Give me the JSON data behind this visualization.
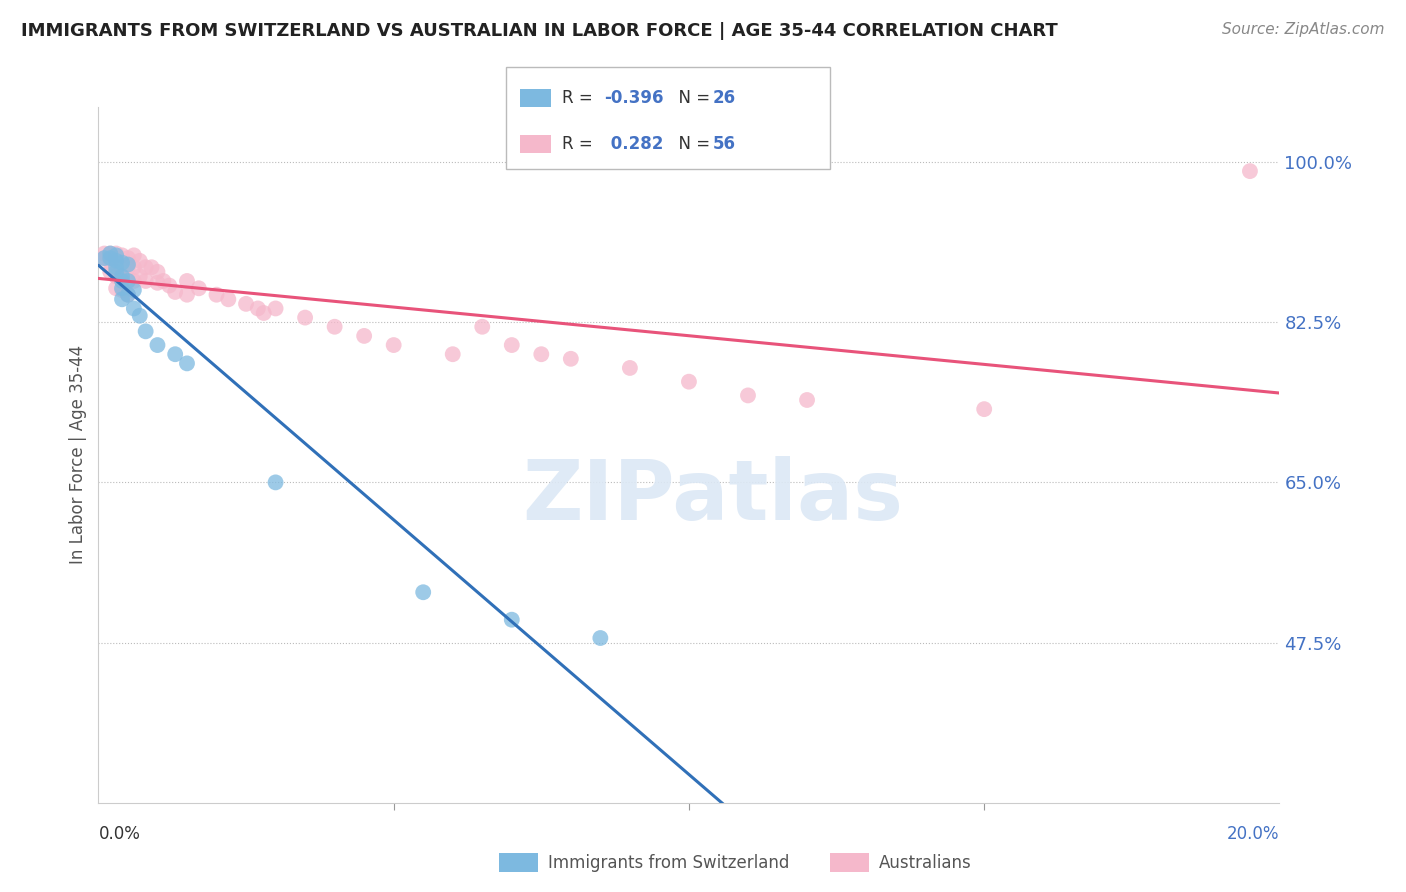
{
  "title": "IMMIGRANTS FROM SWITZERLAND VS AUSTRALIAN IN LABOR FORCE | AGE 35-44 CORRELATION CHART",
  "source": "Source: ZipAtlas.com",
  "ylabel": "In Labor Force | Age 35-44",
  "legend_label1": "Immigrants from Switzerland",
  "legend_label2": "Australians",
  "ytick_vals": [
    0.475,
    0.65,
    0.825,
    1.0
  ],
  "ytick_labels": [
    "47.5%",
    "65.0%",
    "82.5%",
    "100.0%"
  ],
  "xlim": [
    0.0,
    0.2
  ],
  "ylim": [
    0.3,
    1.06
  ],
  "blue_color": "#7db9e0",
  "pink_color": "#f5b8cb",
  "blue_line_color": "#3070b8",
  "pink_line_color": "#e8537a",
  "blue_dash_color": "#b0c8e8",
  "watermark_text": "ZIPatlas",
  "background_color": "#ffffff",
  "grid_color": "#bbbbbb",
  "blue_scatter_x": [
    0.001,
    0.002,
    0.002,
    0.003,
    0.003,
    0.003,
    0.003,
    0.004,
    0.004,
    0.004,
    0.004,
    0.004,
    0.005,
    0.005,
    0.005,
    0.006,
    0.006,
    0.007,
    0.008,
    0.01,
    0.013,
    0.015,
    0.03,
    0.055,
    0.07,
    0.085
  ],
  "blue_scatter_y": [
    0.895,
    0.9,
    0.895,
    0.898,
    0.892,
    0.885,
    0.88,
    0.89,
    0.875,
    0.87,
    0.862,
    0.85,
    0.888,
    0.87,
    0.855,
    0.86,
    0.84,
    0.832,
    0.815,
    0.8,
    0.79,
    0.78,
    0.65,
    0.53,
    0.5,
    0.48
  ],
  "pink_scatter_x": [
    0.001,
    0.001,
    0.002,
    0.002,
    0.002,
    0.002,
    0.003,
    0.003,
    0.003,
    0.003,
    0.003,
    0.004,
    0.004,
    0.004,
    0.004,
    0.005,
    0.005,
    0.005,
    0.005,
    0.006,
    0.006,
    0.006,
    0.007,
    0.007,
    0.008,
    0.008,
    0.009,
    0.01,
    0.01,
    0.011,
    0.012,
    0.013,
    0.015,
    0.015,
    0.017,
    0.02,
    0.022,
    0.025,
    0.027,
    0.028,
    0.03,
    0.035,
    0.04,
    0.045,
    0.05,
    0.06,
    0.065,
    0.07,
    0.075,
    0.08,
    0.09,
    0.1,
    0.11,
    0.12,
    0.15,
    0.195
  ],
  "pink_scatter_y": [
    0.9,
    0.895,
    0.9,
    0.895,
    0.89,
    0.88,
    0.9,
    0.895,
    0.885,
    0.875,
    0.862,
    0.898,
    0.885,
    0.875,
    0.86,
    0.895,
    0.885,
    0.87,
    0.855,
    0.898,
    0.885,
    0.87,
    0.892,
    0.875,
    0.885,
    0.87,
    0.885,
    0.88,
    0.868,
    0.87,
    0.865,
    0.858,
    0.87,
    0.855,
    0.862,
    0.855,
    0.85,
    0.845,
    0.84,
    0.835,
    0.84,
    0.83,
    0.82,
    0.81,
    0.8,
    0.79,
    0.82,
    0.8,
    0.79,
    0.785,
    0.775,
    0.76,
    0.745,
    0.74,
    0.73,
    0.99
  ],
  "blue_line_x_end": 0.135,
  "xtick_positions": [
    0.05,
    0.1,
    0.15
  ],
  "title_fontsize": 13,
  "source_fontsize": 11,
  "ylabel_fontsize": 12,
  "ytick_fontsize": 13,
  "legend_fontsize": 12
}
